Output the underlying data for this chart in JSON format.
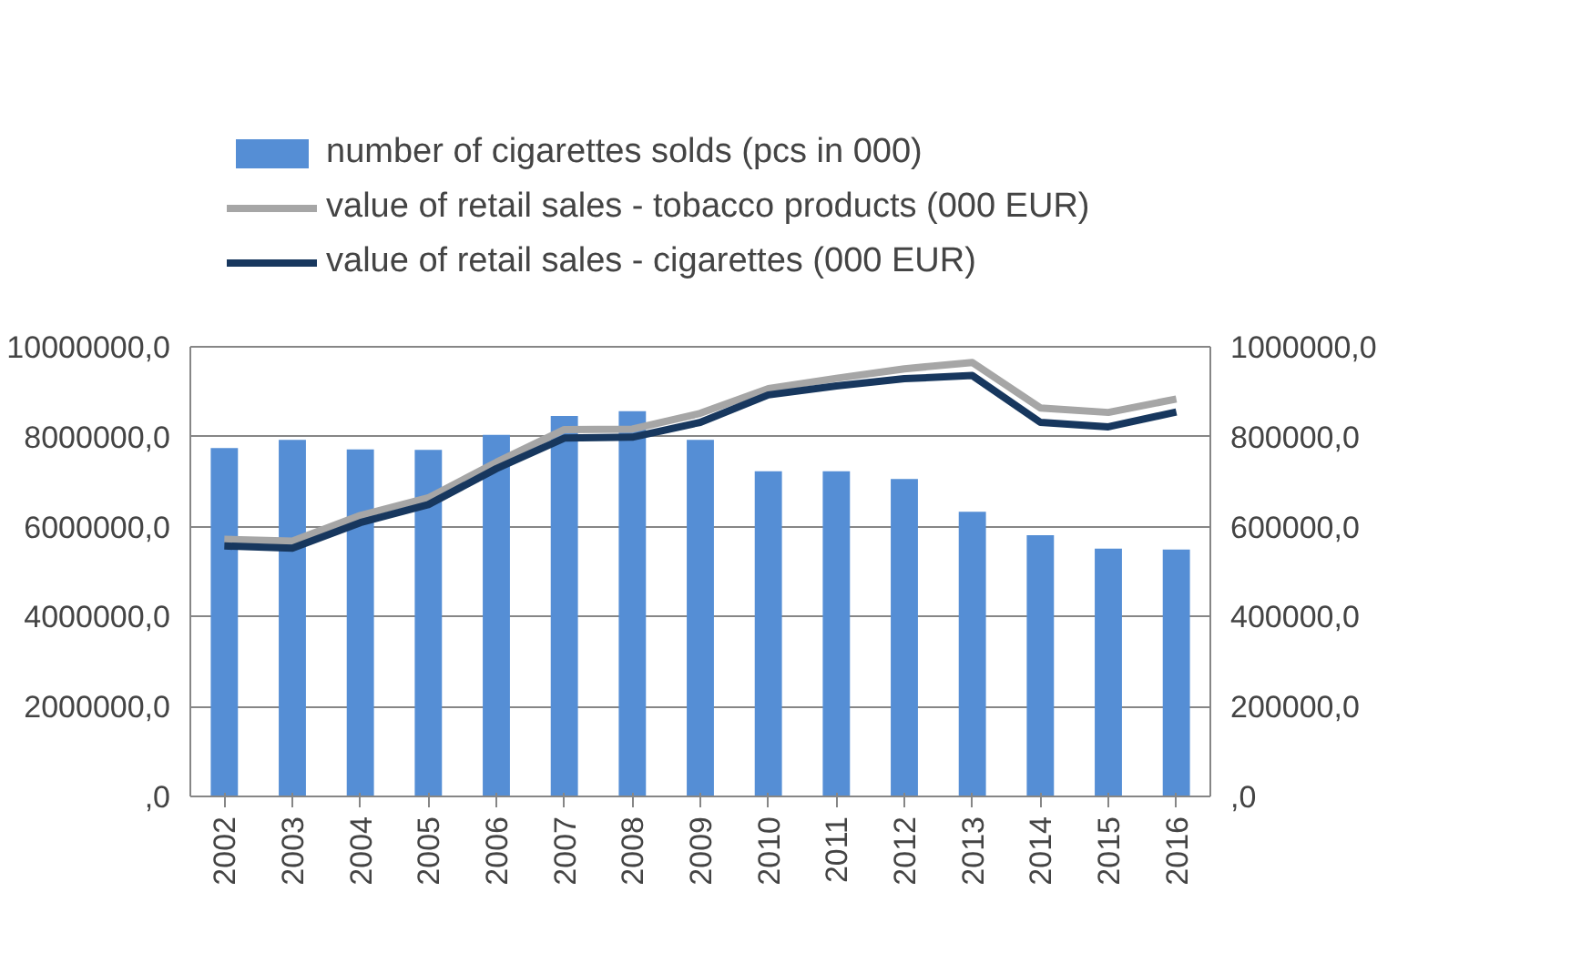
{
  "chart_data": {
    "type": "bar",
    "categories": [
      "2002",
      "2003",
      "2004",
      "2005",
      "2006",
      "2007",
      "2008",
      "2009",
      "2010",
      "2011",
      "2012",
      "2013",
      "2014",
      "2015",
      "2016"
    ],
    "series": [
      {
        "name": "number of cigarettes solds (pcs in 000)",
        "color": "#558ed5",
        "values": [
          7750000,
          7930000,
          7720000,
          7710000,
          8040000,
          8460000,
          8570000,
          7930000,
          7230000,
          7230000,
          7060000,
          6330000,
          5810000,
          5510000,
          5490000
        ]
      },
      {
        "name": "value of retail sales - tobacco products (000 EUR)",
        "type": "line",
        "axis": "y2",
        "color": "#a6a6a6",
        "values": [
          572000,
          568000,
          625000,
          664000,
          743000,
          816000,
          817000,
          852000,
          907000,
          930000,
          951000,
          965000,
          864000,
          854000,
          884000
        ]
      },
      {
        "name": "value of retail sales - cigarettes (000 EUR)",
        "type": "line",
        "axis": "y2",
        "color": "#17375e",
        "values": [
          557000,
          552000,
          609000,
          649000,
          729000,
          797000,
          799000,
          832000,
          893000,
          913000,
          929000,
          936000,
          832000,
          822000,
          855000
        ]
      }
    ],
    "ylim": [
      0,
      10000000
    ],
    "yticks": [
      {
        "value": 0,
        "label": ",0"
      },
      {
        "value": 2000000,
        "label": "2000000,0"
      },
      {
        "value": 4000000,
        "label": "4000000,0"
      },
      {
        "value": 6000000,
        "label": "6000000,0"
      },
      {
        "value": 8000000,
        "label": "8000000,0"
      },
      {
        "value": 10000000,
        "label": "10000000,0"
      }
    ],
    "y2lim": [
      0,
      1000000
    ],
    "y2ticks": [
      {
        "value": 0,
        "label": ",0"
      },
      {
        "value": 200000,
        "label": "200000,0"
      },
      {
        "value": 400000,
        "label": "400000,0"
      },
      {
        "value": 600000,
        "label": "600000,0"
      },
      {
        "value": 800000,
        "label": "800000,0"
      },
      {
        "value": 1000000,
        "label": "1000000,0"
      }
    ],
    "grid": "y",
    "legend": "top",
    "line_style": "solid",
    "marker": "none"
  }
}
